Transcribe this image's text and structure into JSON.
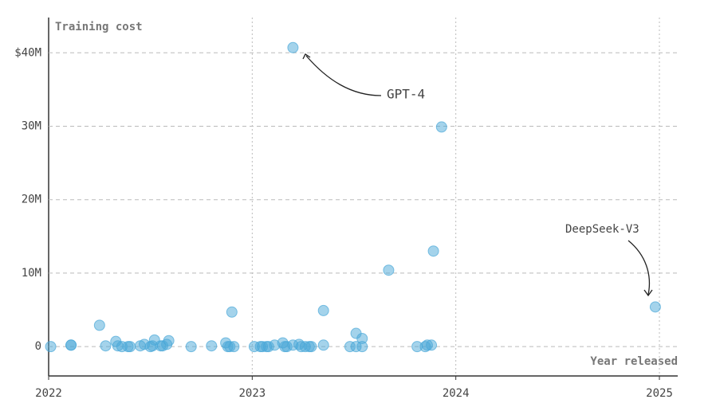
{
  "chart_data": {
    "type": "scatter",
    "y_label": "Training cost",
    "x_label": "Year released",
    "color": "#4aa8d8",
    "x": [
      2022.01,
      2022.11,
      2022.11,
      2022.25,
      2022.28,
      2022.33,
      2022.34,
      2022.36,
      2022.39,
      2022.4,
      2022.45,
      2022.47,
      2022.5,
      2022.51,
      2022.52,
      2022.55,
      2022.56,
      2022.58,
      2022.59,
      2022.7,
      2022.8,
      2022.87,
      2022.88,
      2022.89,
      2022.9,
      2022.91,
      2023.01,
      2023.04,
      2023.05,
      2023.07,
      2023.08,
      2023.11,
      2023.15,
      2023.16,
      2023.17,
      2023.2,
      2023.2,
      2023.23,
      2023.24,
      2023.26,
      2023.28,
      2023.29,
      2023.35,
      2023.35,
      2023.48,
      2023.51,
      2023.51,
      2023.54,
      2023.54,
      2023.67,
      2023.81,
      2023.85,
      2023.86,
      2023.88,
      2023.89,
      2023.93,
      2024.98
    ],
    "values": [
      0,
      0.2,
      0.2,
      2.9,
      0.1,
      0.7,
      0.1,
      0,
      0,
      0,
      0.1,
      0.3,
      0,
      0.1,
      0.9,
      0.1,
      0.1,
      0.3,
      0.8,
      0,
      0.1,
      0.5,
      0,
      0,
      4.7,
      0,
      0,
      0,
      0,
      0,
      0,
      0.2,
      0.5,
      0,
      0,
      40.7,
      0.2,
      0.3,
      0,
      0,
      0,
      0,
      0.2,
      4.9,
      0,
      1.8,
      0,
      1.1,
      0,
      10.4,
      0,
      0,
      0.2,
      0.2,
      13,
      29.9,
      5.4
    ],
    "xlim": [
      2022,
      2025.09
    ],
    "xticks": [
      2022,
      2023,
      2024,
      2025
    ],
    "ylim": [
      -4,
      44.8
    ],
    "yticks": [
      0,
      {
        "value": 10,
        "label": "10M"
      },
      {
        "value": 20,
        "label": "20M"
      },
      {
        "value": 30,
        "label": "30M"
      },
      {
        "value": 40,
        "label": "$40M"
      }
    ],
    "annotations": [
      "GPT-4",
      "DeepSeek-V3"
    ]
  }
}
